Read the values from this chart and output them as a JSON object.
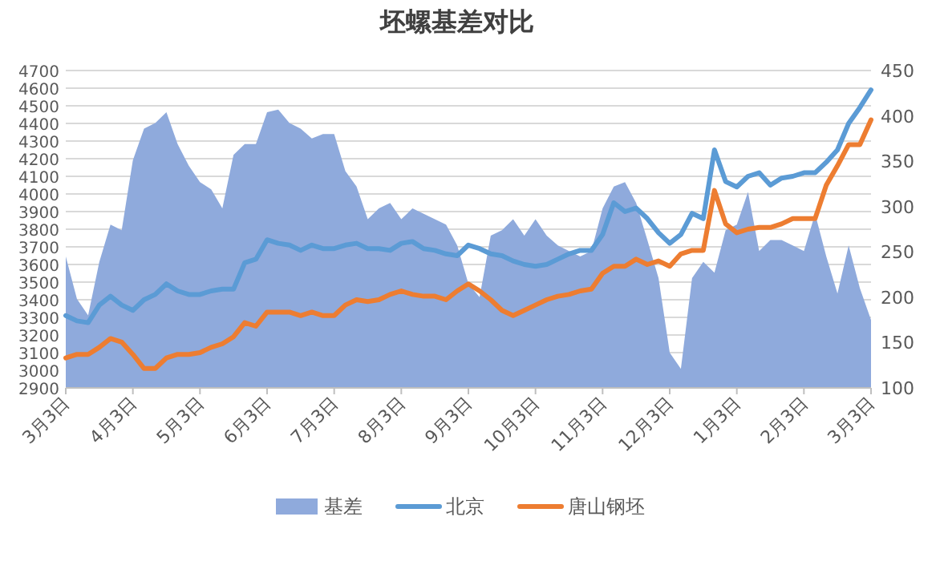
{
  "chart_data": {
    "type": "line",
    "title": "坯螺基差对比",
    "categories": [
      "3月3日",
      null,
      null,
      null,
      null,
      null,
      "4月3日",
      null,
      null,
      null,
      null,
      null,
      "5月3日",
      null,
      null,
      null,
      null,
      null,
      "6月3日",
      null,
      null,
      null,
      null,
      null,
      "7月3日",
      null,
      null,
      null,
      null,
      null,
      "8月3日",
      null,
      null,
      null,
      null,
      null,
      "9月3日",
      null,
      null,
      null,
      null,
      null,
      "10月3日",
      null,
      null,
      null,
      null,
      null,
      "11月3日",
      null,
      null,
      null,
      null,
      null,
      "12月3日",
      null,
      null,
      null,
      null,
      null,
      "1月3日",
      null,
      null,
      null,
      null,
      null,
      "2月3日",
      null,
      null,
      null,
      null,
      null,
      "3月3日"
    ],
    "series": [
      {
        "name": "基差",
        "type": "area",
        "axis": "y2",
        "color": "#8faadc",
        "values": [
          245,
          198,
          180,
          239,
          280,
          274,
          351,
          386,
          392,
          404,
          369,
          345,
          327,
          319,
          298,
          357,
          369,
          369,
          404,
          407,
          392,
          386,
          375,
          380,
          380,
          339,
          322,
          286,
          298,
          304,
          286,
          298,
          292,
          286,
          280,
          257,
          215,
          200,
          268,
          274,
          286,
          268,
          286,
          268,
          257,
          251,
          245,
          251,
          298,
          322,
          327,
          304,
          263,
          221,
          139,
          121,
          221,
          239,
          227,
          274,
          280,
          316,
          251,
          263,
          263,
          257,
          251,
          292,
          245,
          204,
          257,
          210,
          175
        ]
      },
      {
        "name": "北京",
        "color": "#5b9bd5",
        "values": [
          3310,
          3280,
          3270,
          3370,
          3420,
          3370,
          3340,
          3400,
          3430,
          3490,
          3450,
          3430,
          3430,
          3450,
          3460,
          3460,
          3610,
          3630,
          3740,
          3720,
          3710,
          3680,
          3710,
          3690,
          3690,
          3710,
          3720,
          3690,
          3690,
          3680,
          3720,
          3730,
          3690,
          3680,
          3660,
          3650,
          3710,
          3690,
          3660,
          3650,
          3620,
          3600,
          3590,
          3600,
          3630,
          3660,
          3680,
          3680,
          3770,
          3950,
          3900,
          3920,
          3860,
          3780,
          3720,
          3770,
          3890,
          3860,
          4250,
          4070,
          4040,
          4100,
          4120,
          4050,
          4090,
          4100,
          4120,
          4120,
          4180,
          4250,
          4400,
          4490,
          4590
        ]
      },
      {
        "name": "唐山钢坯",
        "color": "#ed7d31",
        "values": [
          3070,
          3090,
          3090,
          3130,
          3180,
          3160,
          3090,
          3010,
          3010,
          3070,
          3090,
          3090,
          3100,
          3130,
          3150,
          3190,
          3270,
          3250,
          3330,
          3330,
          3330,
          3310,
          3330,
          3310,
          3310,
          3370,
          3400,
          3390,
          3400,
          3430,
          3450,
          3430,
          3420,
          3420,
          3400,
          3450,
          3490,
          3450,
          3400,
          3340,
          3310,
          3340,
          3370,
          3400,
          3420,
          3430,
          3450,
          3460,
          3550,
          3590,
          3590,
          3630,
          3600,
          3620,
          3590,
          3660,
          3680,
          3680,
          4020,
          3830,
          3780,
          3800,
          3810,
          3810,
          3830,
          3860,
          3860,
          3860,
          4050,
          4160,
          4280,
          4280,
          4420
        ]
      }
    ],
    "ylim": [
      2900,
      4700
    ],
    "yticks": [
      2900,
      3000,
      3100,
      3200,
      3300,
      3400,
      3500,
      3600,
      3700,
      3800,
      3900,
      4000,
      4100,
      4200,
      4300,
      4400,
      4500,
      4600,
      4700
    ],
    "y2lim": [
      100,
      450
    ],
    "y2ticks": [
      100,
      150,
      200,
      250,
      300,
      350,
      400,
      450
    ],
    "grid": "y",
    "legend": "bottom"
  }
}
